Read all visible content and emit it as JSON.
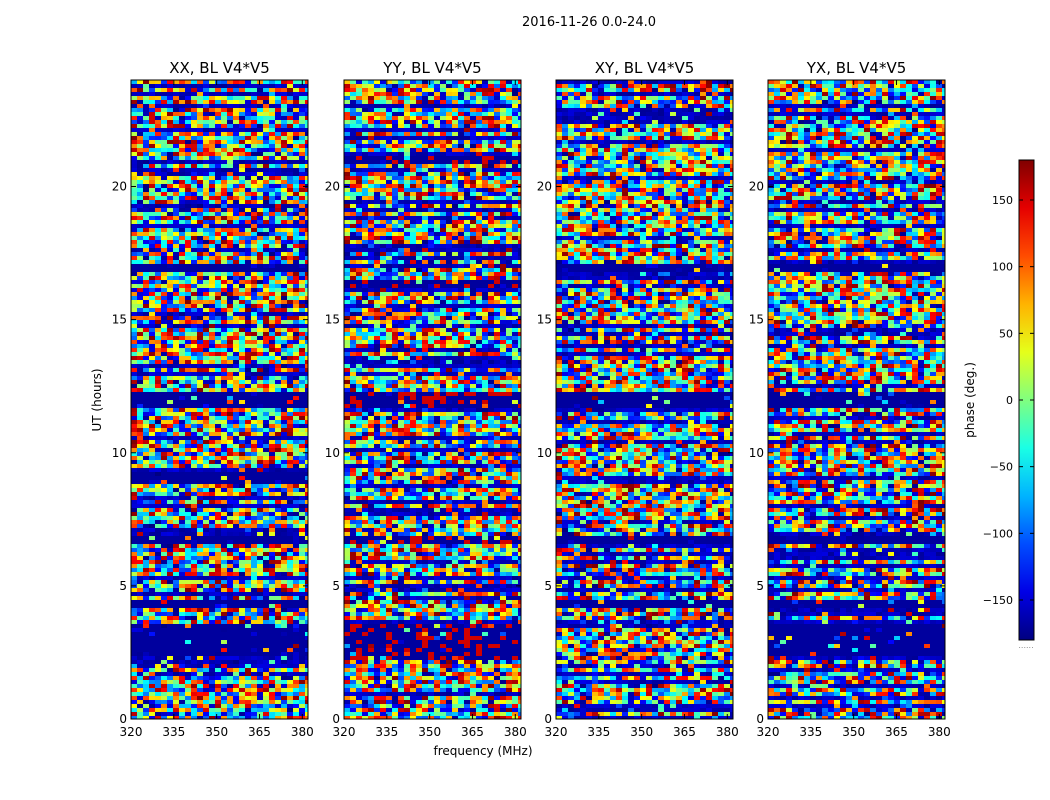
{
  "chart_data": {
    "type": "heatmap",
    "title": "2016-11-26 0.0-24.0",
    "xlabel": "frequency (MHz)",
    "ylabel": "UT (hours)",
    "xlim": [
      320,
      382
    ],
    "ylim": [
      0,
      24
    ],
    "x_ticks": [
      320,
      335,
      350,
      365,
      380
    ],
    "y_ticks": [
      0,
      5,
      10,
      15,
      20
    ],
    "colormap": "jet",
    "colorbar": {
      "label": "phase (deg.)",
      "range": [
        -180,
        180
      ],
      "ticks": [
        150,
        100,
        50,
        0,
        -50,
        -100,
        -150
      ],
      "tick_labels": [
        "150",
        "100",
        "50",
        "0",
        "−50",
        "−100",
        "−150"
      ],
      "extra_label": "......"
    },
    "panels": [
      {
        "title": "XX, BL V4*V5",
        "flagged_bands": [
          [
            11.7,
            12.4
          ],
          [
            2.5,
            3.7
          ],
          [
            4.3,
            4.6
          ],
          [
            8.9,
            9.4
          ],
          [
            16.9,
            17.1
          ],
          [
            6.6,
            6.9
          ]
        ]
      },
      {
        "title": "YY, BL V4*V5",
        "flagged_bands": [
          [
            11.7,
            12.4
          ],
          [
            2.3,
            3.6
          ],
          [
            20.9,
            21.2
          ],
          [
            16.3,
            16.5
          ],
          [
            6.6,
            6.9
          ]
        ]
      },
      {
        "title": "XY, BL V4*V5",
        "flagged_bands": [
          [
            11.7,
            12.4
          ],
          [
            4.3,
            4.6
          ],
          [
            16.9,
            17.1
          ],
          [
            6.6,
            6.9
          ]
        ]
      },
      {
        "title": "YX, BL V4*V5",
        "flagged_bands": [
          [
            11.7,
            12.4
          ],
          [
            2.5,
            3.6
          ],
          [
            4.3,
            4.5
          ],
          [
            16.9,
            17.1
          ],
          [
            6.6,
            6.9
          ]
        ]
      }
    ]
  }
}
